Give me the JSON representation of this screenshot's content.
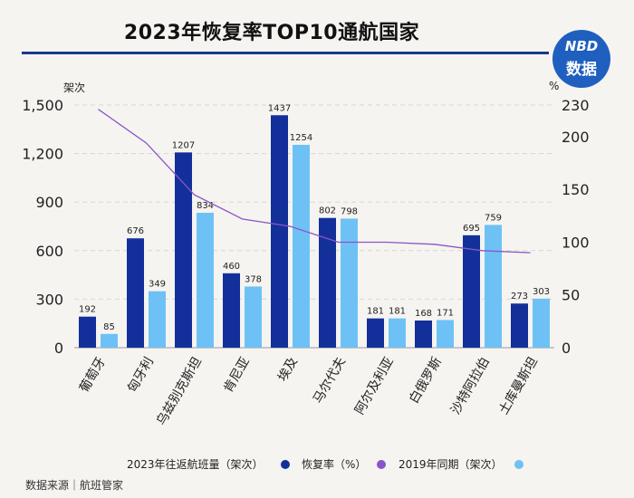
{
  "title": "2023年恢复率TOP10通航国家",
  "logo": {
    "line1": "NBD",
    "line2": "数据"
  },
  "units": {
    "left": "架次",
    "right": "%"
  },
  "source": "数据来源｜航班管家",
  "colors": {
    "flights_2023": "#13309a",
    "flights_2019": "#6ec1f5",
    "recovery": "#8a55c8"
  },
  "legend": [
    {
      "label": "2023年往返航班量（架次）",
      "color": "#13309a"
    },
    {
      "label": "恢复率（%）",
      "color": "#8a55c8"
    },
    {
      "label": "2019年同期（架次）",
      "color": "#6ec1f5"
    }
  ],
  "chart_data": {
    "type": "bar",
    "title": "2023年恢复率TOP10通航国家",
    "categories": [
      "葡萄牙",
      "匈牙利",
      "乌兹别克斯坦",
      "肯尼亚",
      "埃及",
      "马尔代夫",
      "阿尔及利亚",
      "白俄罗斯",
      "沙特阿拉伯",
      "土库曼斯坦"
    ],
    "ylabel": "架次",
    "ylim": [
      0,
      1500
    ],
    "yticks": [
      "0",
      "300",
      "600",
      "900",
      "1,200",
      "1,500"
    ],
    "y2label": "%",
    "y2lim": [
      0,
      230
    ],
    "y2ticks": [
      "0",
      "50",
      "100",
      "150",
      "200",
      "230"
    ],
    "grid": true,
    "legend_position": "bottom",
    "series": [
      {
        "name": "2023年往返航班量（架次）",
        "axis": "left",
        "kind": "bar",
        "values": [
          192,
          676,
          1207,
          460,
          1437,
          802,
          181,
          168,
          695,
          273
        ]
      },
      {
        "name": "2019年同期（架次）",
        "axis": "left",
        "kind": "bar",
        "values": [
          85,
          349,
          834,
          378,
          1254,
          798,
          181,
          171,
          759,
          303
        ]
      },
      {
        "name": "恢复率（%）",
        "axis": "right",
        "kind": "line",
        "values": [
          226,
          194,
          145,
          122,
          115,
          100,
          100,
          98,
          92,
          90
        ]
      }
    ]
  }
}
